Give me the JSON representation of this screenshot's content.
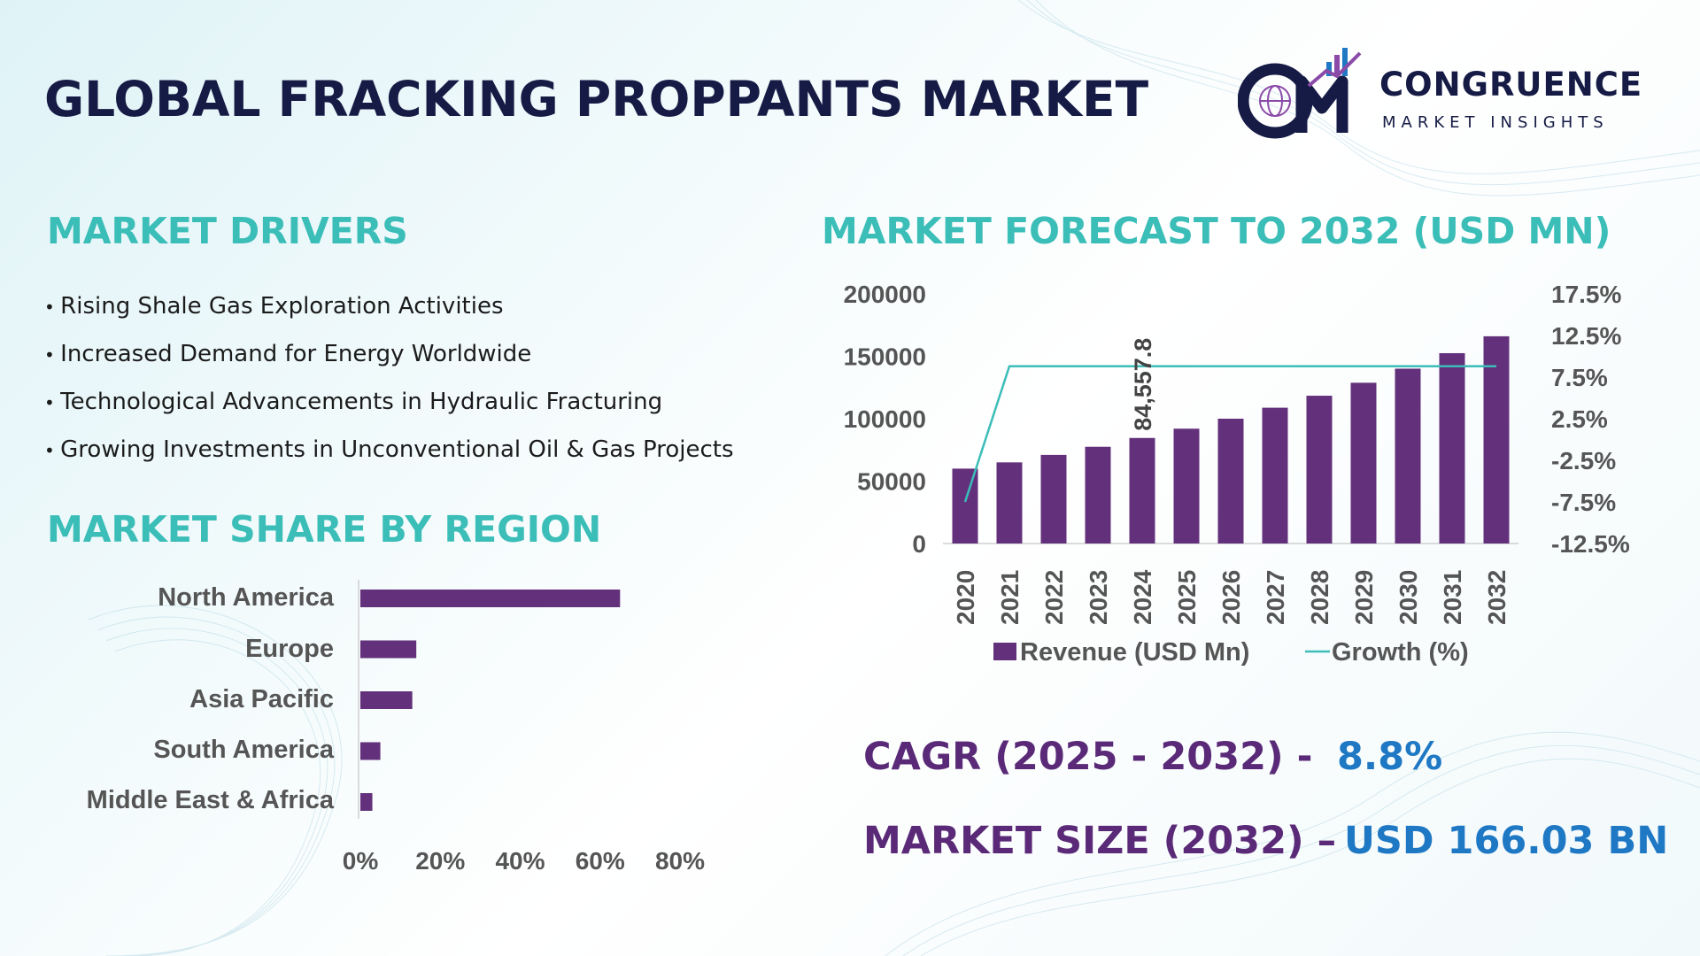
{
  "title": "GLOBAL FRACKING PROPPANTS MARKET",
  "logo": {
    "name": "CONGRUENCE",
    "subtitle": "MARKET INSIGHTS",
    "icon": "cm-growth-logo-icon"
  },
  "drivers": {
    "heading": "MARKET DRIVERS",
    "items": [
      "Rising Shale Gas Exploration Activities",
      "Increased Demand for Energy Worldwide",
      "Technological Advancements in Hydraulic Fracturing",
      "Growing Investments in Unconventional Oil & Gas Projects"
    ]
  },
  "region": {
    "heading": "MARKET SHARE BY REGION"
  },
  "forecast": {
    "heading": "MARKET FORECAST TO 2032 (USD MN)"
  },
  "stats": {
    "cagr_label": "CAGR (2025 - 2032) -",
    "cagr_value": "8.8%",
    "size_label": "MARKET SIZE (2032) –",
    "size_value": "USD 166.03 BN"
  },
  "colors": {
    "bar": "#63317c",
    "growth_line": "#3bbdb8",
    "heading": "#3bbdb8",
    "title": "#161b45",
    "stat_label": "#5a2a78",
    "stat_value": "#1f78c4"
  },
  "chart_data": [
    {
      "type": "bar",
      "orientation": "horizontal",
      "categories": [
        "North America",
        "Europe",
        "Asia Pacific",
        "South America",
        "Middle East & Africa"
      ],
      "values": [
        65,
        14,
        13,
        5,
        3
      ],
      "x_ticks": [
        "0%",
        "20%",
        "40%",
        "60%",
        "80%"
      ],
      "xlim": [
        0,
        80
      ],
      "grid": false
    },
    {
      "type": "bar",
      "categories": [
        "2020",
        "2021",
        "2022",
        "2023",
        "2024",
        "2025",
        "2026",
        "2027",
        "2028",
        "2029",
        "2030",
        "2031",
        "2032"
      ],
      "series": [
        {
          "name": "Revenue (USD Mn)",
          "type": "bar",
          "values": [
            60000,
            65000,
            71000,
            77500,
            84557.8,
            92000,
            100000,
            108800,
            118400,
            128800,
            140100,
            152500,
            166030
          ]
        },
        {
          "name": "Growth (%)",
          "type": "line",
          "axis": "right",
          "values": [
            -7.5,
            8.8,
            8.8,
            8.8,
            8.8,
            8.8,
            8.8,
            8.8,
            8.8,
            8.8,
            8.8,
            8.8,
            8.8
          ]
        }
      ],
      "data_labels": [
        {
          "category": "2024",
          "text": "84,557.8"
        }
      ],
      "y_ticks": [
        "0",
        "50000",
        "100000",
        "150000",
        "200000"
      ],
      "ylim": [
        0,
        200000
      ],
      "y2_ticks": [
        "-12.5%",
        "-7.5%",
        "-2.5%",
        "2.5%",
        "7.5%",
        "12.5%",
        "17.5%"
      ],
      "y2lim": [
        -12.5,
        17.5
      ],
      "legend": "bottom",
      "grid": false
    }
  ]
}
